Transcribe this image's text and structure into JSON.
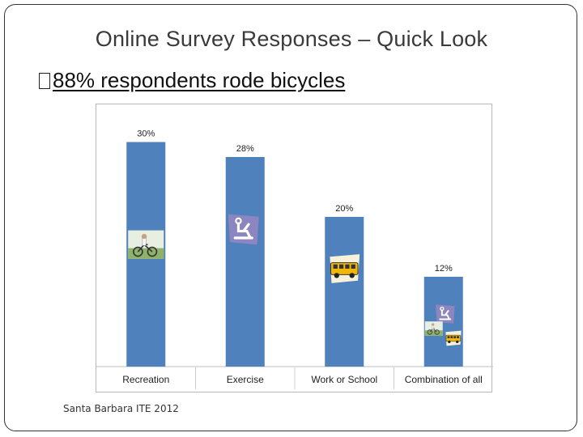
{
  "slide": {
    "title": "Online Survey Responses – Quick Look",
    "bullet": "88% respondents rode bicycles",
    "footer": "Santa Barbara ITE 2012"
  },
  "colors": {
    "bar": "#4f81bd",
    "grid": "#d9d9d9",
    "label": "#222222"
  },
  "chart_data": {
    "type": "bar",
    "categories": [
      "Recreation",
      "Exercise",
      "Work or School",
      "Combination of all"
    ],
    "values": [
      30,
      28,
      20,
      12
    ],
    "data_labels": [
      "30%",
      "28%",
      "20%",
      "12%"
    ],
    "unit": "%",
    "ylim": [
      0,
      32
    ],
    "grid": false,
    "legend": "none",
    "bar_icons": [
      [
        "cyclists-photo-icon"
      ],
      [
        "exercise-bike-icon"
      ],
      [
        "school-bus-icon"
      ],
      [
        "exercise-bike-icon",
        "cyclists-photo-icon",
        "school-bus-icon"
      ]
    ]
  }
}
